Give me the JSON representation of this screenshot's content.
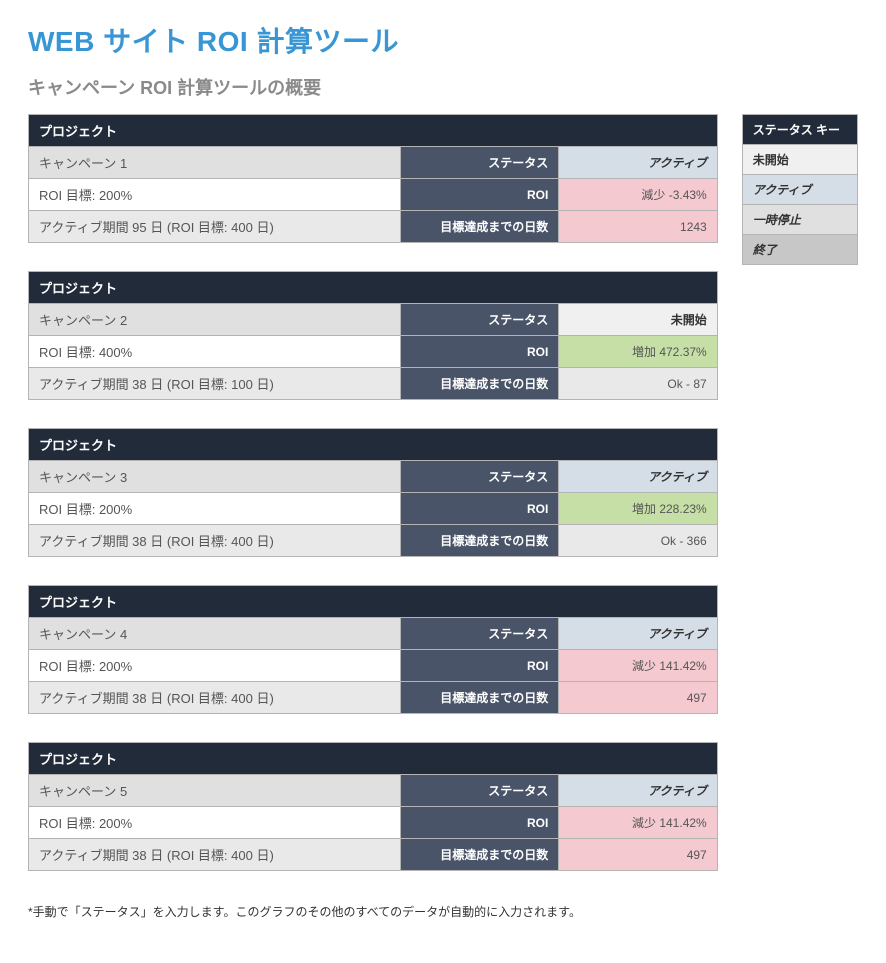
{
  "title": "WEB サイト ROI 計算ツール",
  "subtitle": "キャンペーン ROI 計算ツールの概要",
  "labels": {
    "project": "プロジェクト",
    "status": "ステータス",
    "roi": "ROI",
    "days_to_goal": "目標達成までの日数"
  },
  "status_key": {
    "header": "ステータス キー",
    "not_started": "未開始",
    "active": "アクティブ",
    "paused": "一時停止",
    "ended": "終了"
  },
  "projects": [
    {
      "name": "キャンペーン 1",
      "status_text": "アクティブ",
      "status_class": "status-active",
      "roi_goal_text": "ROI 目標:  200%",
      "roi_value": "減少 -3.43%",
      "roi_class": "roi-neg",
      "period_text": "アクティブ期間 95 日 (ROI 目標: 400 日)",
      "days_value": "1243",
      "days_class": "days-pink"
    },
    {
      "name": "キャンペーン 2",
      "status_text": "未開始",
      "status_class": "status-notstart",
      "roi_goal_text": "ROI 目標:  400%",
      "roi_value": "増加 472.37%",
      "roi_class": "roi-pos",
      "period_text": "アクティブ期間 38 日 (ROI 目標: 100 日)",
      "days_value": "Ok - 87",
      "days_class": "days-plain"
    },
    {
      "name": "キャンペーン 3",
      "status_text": "アクティブ",
      "status_class": "status-active",
      "roi_goal_text": "ROI 目標:  200%",
      "roi_value": "増加 228.23%",
      "roi_class": "roi-pos",
      "period_text": "アクティブ期間 38 日 (ROI 目標: 400 日)",
      "days_value": "Ok - 366",
      "days_class": "days-plain"
    },
    {
      "name": "キャンペーン 4",
      "status_text": "アクティブ",
      "status_class": "status-active",
      "roi_goal_text": "ROI 目標:  200%",
      "roi_value": "減少 141.42%",
      "roi_class": "roi-neg",
      "period_text": "アクティブ期間 38 日 (ROI 目標: 400 日)",
      "days_value": "497",
      "days_class": "days-pink"
    },
    {
      "name": "キャンペーン 5",
      "status_text": "アクティブ",
      "status_class": "status-active",
      "roi_goal_text": "ROI 目標:  200%",
      "roi_value": "減少 141.42%",
      "roi_class": "roi-neg",
      "period_text": "アクティブ期間 38 日 (ROI 目標: 400 日)",
      "days_value": "497",
      "days_class": "days-pink"
    }
  ],
  "footnote": "*手動で「ステータス」を入力します。このグラフのその他のすべてのデータが自動的に入力されます。",
  "colors": {
    "title": "#3896d4",
    "header_bg": "#222b3a",
    "midcol_bg": "#4a5468",
    "border": "#b4b4b4",
    "row_light": "#e0e0e0",
    "row_gray": "#e9e9e9",
    "status_active_bg": "#d5dde6",
    "status_notstart_bg": "#f0f0f0",
    "roi_neg_bg": "#f4c9cf",
    "roi_pos_bg": "#c6dfa7",
    "key_pause_bg": "#e0e0e0",
    "key_end_bg": "#c7c7c7"
  }
}
